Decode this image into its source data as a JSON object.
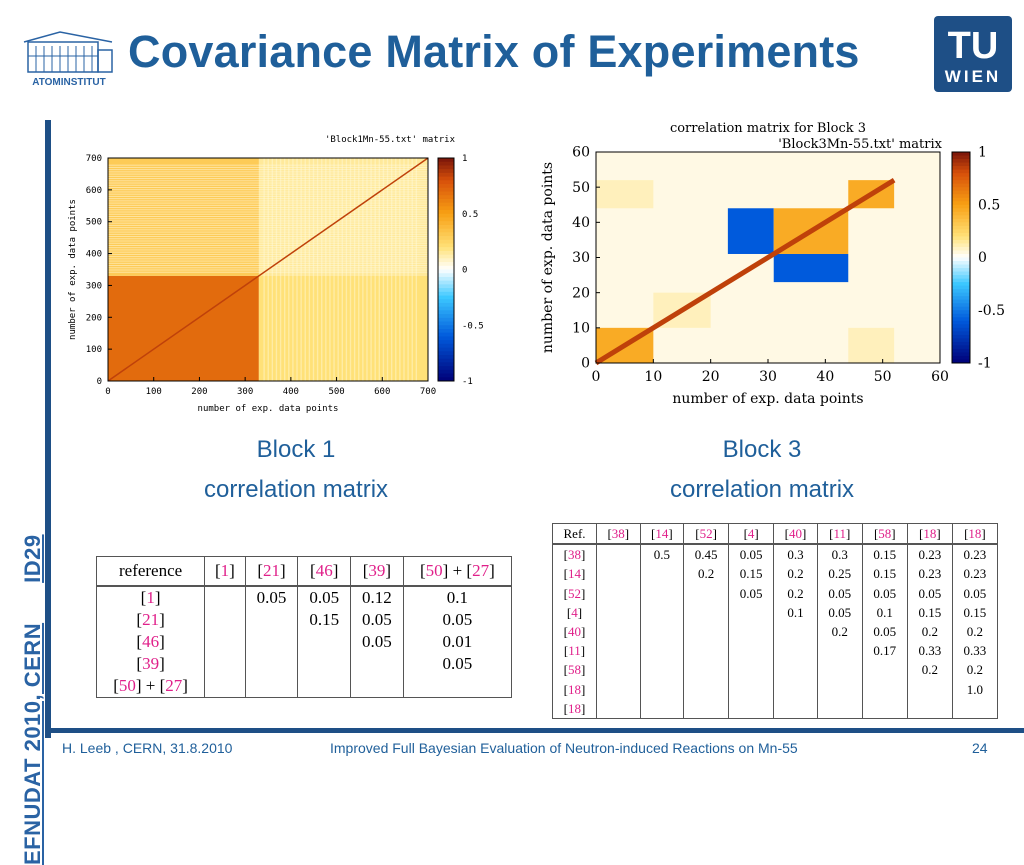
{
  "slide": {
    "title": "Covariance Matrix of Experiments",
    "logo_left_text": "ATOMINSTITUT",
    "logo_right_top": "TU",
    "logo_right_bottom": "WIEN",
    "side_text_a": "EFNUDAT 2010, CERN",
    "side_text_b": "ID29"
  },
  "captions": {
    "block1_line1": "Block 1",
    "block1_line2": "correlation matrix",
    "block3_line1": "Block 3",
    "block3_line2": "correlation matrix"
  },
  "footer": {
    "author": "H. Leeb , CERN, 31.8.2010",
    "talk": "Improved Full Bayesian Evaluation of Neutron-induced Reactions on Mn-55",
    "page": "24"
  },
  "chart_data": [
    {
      "type": "heatmap",
      "title": "'Block1Mn-55.txt' matrix",
      "xlabel": "number of exp. data points",
      "ylabel": "number of exp. data points",
      "xlim": [
        0,
        700
      ],
      "ylim": [
        0,
        700
      ],
      "x_ticks": [
        "0",
        "100",
        "200",
        "300",
        "400",
        "500",
        "600",
        "700"
      ],
      "y_ticks": [
        "0",
        "100",
        "200",
        "300",
        "400",
        "500",
        "600",
        "700"
      ],
      "colorbar_ticks": [
        "1",
        "0.5",
        "0",
        "-0.5",
        "-1"
      ],
      "colorbar_range": [
        -1,
        1
      ],
      "blocks": [
        {
          "x": [
            0,
            330
          ],
          "y": [
            0,
            330
          ],
          "value": 0.7
        },
        {
          "x": [
            330,
            700
          ],
          "y": [
            330,
            700
          ],
          "value": 0.15
        },
        {
          "x": [
            0,
            330
          ],
          "y": [
            330,
            700
          ],
          "value": 0.3
        },
        {
          "x": [
            330,
            700
          ],
          "y": [
            0,
            330
          ],
          "value": 0.2
        }
      ],
      "diagonal": 1.0
    },
    {
      "type": "heatmap",
      "title": "correlation matrix for Block 3",
      "subtitle": "'Block3Mn-55.txt' matrix",
      "xlabel": "number of exp. data points",
      "ylabel": "number of exp. data points",
      "xlim": [
        0,
        60
      ],
      "ylim": [
        0,
        60
      ],
      "x_ticks": [
        "0",
        "10",
        "20",
        "30",
        "40",
        "50",
        "60"
      ],
      "y_ticks": [
        "0",
        "10",
        "20",
        "30",
        "40",
        "50",
        "60"
      ],
      "colorbar_ticks": [
        "1",
        "0.5",
        "0",
        "-0.5",
        "-1"
      ],
      "colorbar_range": [
        -1,
        1
      ],
      "blocks": [
        {
          "x": [
            0,
            10
          ],
          "y": [
            0,
            10
          ],
          "value": 0.45
        },
        {
          "x": [
            10,
            20
          ],
          "y": [
            10,
            20
          ],
          "value": 0.1
        },
        {
          "x": [
            23,
            31
          ],
          "y": [
            31,
            44
          ],
          "value": -0.6
        },
        {
          "x": [
            31,
            44
          ],
          "y": [
            23,
            31
          ],
          "value": -0.6
        },
        {
          "x": [
            31,
            44
          ],
          "y": [
            31,
            44
          ],
          "value": 0.45
        },
        {
          "x": [
            44,
            52
          ],
          "y": [
            44,
            52
          ],
          "value": 0.45
        },
        {
          "x": [
            44,
            52
          ],
          "y": [
            0,
            10
          ],
          "value": 0.1
        },
        {
          "x": [
            0,
            10
          ],
          "y": [
            44,
            52
          ],
          "value": 0.1
        }
      ],
      "diagonal": 1.0
    }
  ],
  "table1": {
    "header": [
      "reference",
      "[1]",
      "[21]",
      "[46]",
      "[39]",
      "[50] + [27]"
    ],
    "rows": [
      [
        "[1]",
        "",
        "0.05",
        "0.05",
        "0.12",
        "0.1"
      ],
      [
        "[21]",
        "",
        "",
        "0.15",
        "0.05",
        "0.05"
      ],
      [
        "[46]",
        "",
        "",
        "",
        "0.05",
        "0.01"
      ],
      [
        "[39]",
        "",
        "",
        "",
        "",
        "0.05"
      ],
      [
        "[50] + [27]",
        "",
        "",
        "",
        "",
        ""
      ]
    ]
  },
  "table2": {
    "header": [
      "Ref.",
      "[38]",
      "[14]",
      "[52]",
      "[4]",
      "[40]",
      "[11]",
      "[58]",
      "[18]",
      "[18]"
    ],
    "rows": [
      [
        "[38]",
        "",
        "0.5",
        "0.45",
        "0.05",
        "0.3",
        "0.3",
        "0.15",
        "0.23",
        "0.23"
      ],
      [
        "[14]",
        "",
        "",
        "0.2",
        "0.15",
        "0.2",
        "0.25",
        "0.15",
        "0.23",
        "0.23"
      ],
      [
        "[52]",
        "",
        "",
        "",
        "0.05",
        "0.2",
        "0.05",
        "0.05",
        "0.05",
        "0.05"
      ],
      [
        "[4]",
        "",
        "",
        "",
        "",
        "0.1",
        "0.05",
        "0.1",
        "0.15",
        "0.15"
      ],
      [
        "[40]",
        "",
        "",
        "",
        "",
        "",
        "0.2",
        "0.05",
        "0.2",
        "0.2"
      ],
      [
        "[11]",
        "",
        "",
        "",
        "",
        "",
        "",
        "0.17",
        "0.33",
        "0.33"
      ],
      [
        "[58]",
        "",
        "",
        "",
        "",
        "",
        "",
        "",
        "0.2",
        "0.2"
      ],
      [
        "[18]",
        "",
        "",
        "",
        "",
        "",
        "",
        "",
        "",
        "1.0"
      ],
      [
        "[18]",
        "",
        "",
        "",
        "",
        "",
        "",
        "",
        "",
        ""
      ]
    ]
  }
}
